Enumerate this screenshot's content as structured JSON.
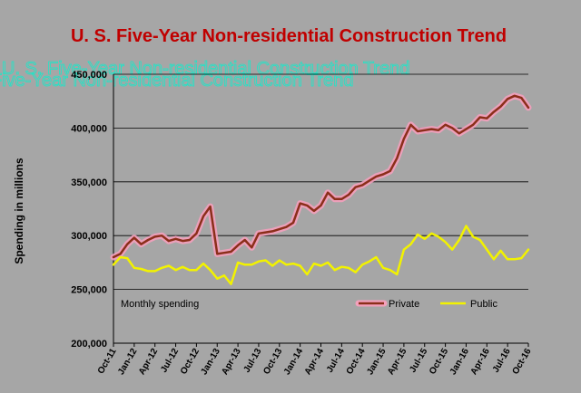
{
  "chart_data": {
    "type": "line",
    "title": "U. S. Five-Year Non-residential Construction Trend",
    "ylabel": "Spending in millions",
    "xlabel": "",
    "ylim": [
      200000,
      450000
    ],
    "yticks": [
      200000,
      250000,
      300000,
      350000,
      400000,
      450000
    ],
    "ytick_labels": [
      "200,000",
      "250,000",
      "300,000",
      "350,000",
      "400,000",
      "450,000"
    ],
    "x_tick_labels": [
      "Oct-11",
      "Jan-12",
      "Apr-12",
      "Jul-12",
      "Oct-12",
      "Jan-13",
      "Apr-13",
      "Jul-13",
      "Oct-13",
      "Jan-14",
      "Apr-14",
      "Jul-14",
      "Oct-14",
      "Jan-15",
      "Apr-15",
      "Jul-15",
      "Oct-15",
      "Jan-16",
      "Apr-16",
      "Jul-16",
      "Oct-16"
    ],
    "annotation": "Monthly spending",
    "grid": "horizontal",
    "legend_position": "bottom-right",
    "series": [
      {
        "name": "Private",
        "color": "#8b2e1a",
        "values": [
          280000,
          283000,
          292000,
          298000,
          292000,
          296000,
          299000,
          300000,
          295000,
          297000,
          295000,
          296000,
          302000,
          318000,
          327000,
          283000,
          284000,
          285000,
          291000,
          296000,
          289000,
          302000,
          303000,
          304000,
          306000,
          308000,
          312000,
          330000,
          328000,
          323000,
          328000,
          340000,
          334000,
          334000,
          338000,
          345000,
          347000,
          351000,
          355000,
          357000,
          360000,
          372000,
          390000,
          403000,
          397000,
          398000,
          399000,
          398000,
          403000,
          400000,
          395000,
          399000,
          403000,
          410000,
          409000,
          415000,
          420000,
          427000,
          430000,
          428000,
          419000
        ]
      },
      {
        "name": "Public",
        "color": "#f2f200",
        "values": [
          273000,
          280000,
          279000,
          270000,
          269000,
          267000,
          267000,
          270000,
          272000,
          268000,
          271000,
          268000,
          268000,
          274000,
          268000,
          260000,
          263000,
          255000,
          275000,
          273000,
          273000,
          276000,
          277000,
          272000,
          277000,
          273000,
          274000,
          272000,
          264000,
          274000,
          272000,
          275000,
          268000,
          271000,
          270000,
          266000,
          273000,
          276000,
          280000,
          270000,
          268000,
          264000,
          287000,
          292000,
          301000,
          297000,
          302000,
          299000,
          294000,
          287000,
          296000,
          309000,
          299000,
          296000,
          287000,
          278000,
          286000,
          278000,
          278000,
          279000,
          287000
        ]
      }
    ]
  }
}
